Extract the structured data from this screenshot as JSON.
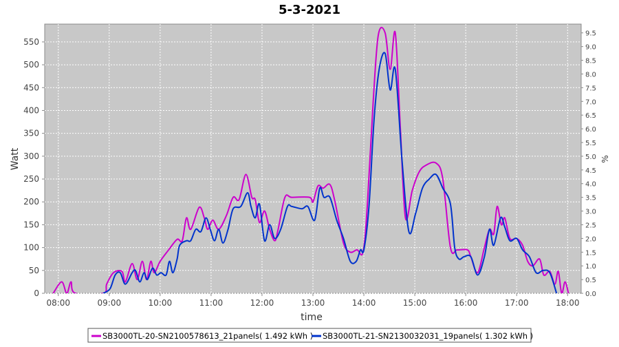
{
  "chart_data": {
    "type": "line",
    "title": "5-3-2021",
    "xlabel": "time",
    "ylabel": "Watt",
    "y2label": "%",
    "xlim": [
      464,
      1096
    ],
    "xticks": [
      {
        "value": 480,
        "label": "08:00"
      },
      {
        "value": 540,
        "label": "09:00"
      },
      {
        "value": 600,
        "label": "10:00"
      },
      {
        "value": 660,
        "label": "11:00"
      },
      {
        "value": 720,
        "label": "12:00"
      },
      {
        "value": 780,
        "label": "13:00"
      },
      {
        "value": 840,
        "label": "14:00"
      },
      {
        "value": 900,
        "label": "15:00"
      },
      {
        "value": 960,
        "label": "16:00"
      },
      {
        "value": 1020,
        "label": "17:00"
      },
      {
        "value": 1080,
        "label": "18:00"
      }
    ],
    "ylim": [
      0,
      589
    ],
    "yticks": [
      0,
      50,
      100,
      150,
      200,
      250,
      300,
      350,
      400,
      450,
      500,
      550
    ],
    "y2lim": [
      0,
      9.82
    ],
    "y2ticks": [
      {
        "value": 0,
        "label": "0.0"
      },
      0.5,
      {
        "value": 1,
        "label": "1.0"
      },
      1.5,
      {
        "value": 2,
        "label": "2.0"
      },
      2.5,
      {
        "value": 3,
        "label": "3.0"
      },
      3.5,
      {
        "value": 4,
        "label": "4.0"
      },
      4.5,
      {
        "value": 5,
        "label": "5.0"
      },
      5.5,
      {
        "value": 6,
        "label": "6.0"
      },
      6.5,
      {
        "value": 7,
        "label": "7.0"
      },
      7.5,
      {
        "value": 8,
        "label": "8.0"
      },
      8.5,
      {
        "value": 9,
        "label": "9.0"
      },
      9.5
    ],
    "grid": true,
    "series": [
      {
        "name": "SB3000TL-20-SN2100578613_21panels( 1.492 kWh )",
        "color": "#cc00cc",
        "x": [
          474,
          484,
          490,
          495,
          500,
          533,
          537,
          545,
          555,
          559,
          567,
          573,
          579,
          584,
          589,
          593,
          600,
          610,
          620,
          626,
          631,
          636,
          646,
          652,
          656,
          662,
          669,
          678,
          686,
          693,
          701,
          708,
          712,
          717,
          723,
          729,
          735,
          739,
          747,
          755,
          776,
          780,
          786,
          792,
          800,
          806,
          816,
          824,
          832,
          839,
          844,
          851,
          857,
          865,
          871,
          877,
          883,
          889,
          897,
          905,
          913,
          925,
          933,
          942,
          950,
          962,
          966,
          974,
          982,
          988,
          993,
          997,
          1002,
          1006,
          1012,
          1020,
          1027,
          1033,
          1039,
          1047,
          1052,
          1059,
          1065,
          1069,
          1073,
          1077,
          1081
        ],
        "values": [
          0,
          25,
          0,
          25,
          0,
          0,
          20,
          45,
          48,
          25,
          65,
          30,
          70,
          30,
          70,
          45,
          70,
          95,
          118,
          115,
          165,
          140,
          188,
          165,
          140,
          160,
          140,
          170,
          210,
          205,
          260,
          210,
          205,
          155,
          180,
          140,
          115,
          140,
          210,
          210,
          210,
          200,
          235,
          230,
          238,
          200,
          110,
          90,
          95,
          90,
          190,
          420,
          565,
          570,
          490,
          570,
          360,
          165,
          225,
          265,
          280,
          285,
          250,
          100,
          95,
          95,
          80,
          45,
          100,
          140,
          130,
          190,
          150,
          165,
          120,
          120,
          105,
          70,
          60,
          75,
          40,
          48,
          20,
          48,
          0,
          25,
          0
        ]
      },
      {
        "name": "SB3000TL-21-SN2130032031_19panels( 1.302 kWh )",
        "color": "#0033cc",
        "x": [
          533,
          541,
          547,
          553,
          559,
          567,
          571,
          576,
          581,
          585,
          591,
          596,
          601,
          607,
          611,
          615,
          620,
          623,
          631,
          636,
          642,
          648,
          654,
          659,
          664,
          669,
          674,
          680,
          686,
          695,
          703,
          707,
          712,
          717,
          723,
          729,
          735,
          742,
          750,
          755,
          767,
          774,
          782,
          788,
          793,
          800,
          808,
          816,
          824,
          831,
          836,
          840,
          846,
          852,
          858,
          865,
          871,
          877,
          885,
          893,
          901,
          909,
          917,
          925,
          933,
          942,
          947,
          952,
          958,
          966,
          974,
          982,
          988,
          993,
          1001,
          1006,
          1012,
          1020,
          1027,
          1035,
          1043,
          1051,
          1059,
          1067
        ],
        "values": [
          0,
          10,
          40,
          45,
          20,
          45,
          50,
          25,
          45,
          30,
          55,
          40,
          45,
          40,
          70,
          45,
          75,
          105,
          115,
          115,
          140,
          135,
          165,
          140,
          115,
          140,
          110,
          140,
          185,
          190,
          220,
          190,
          165,
          195,
          115,
          150,
          120,
          140,
          190,
          190,
          185,
          190,
          160,
          230,
          210,
          210,
          160,
          120,
          70,
          70,
          95,
          95,
          190,
          380,
          490,
          525,
          445,
          490,
          290,
          135,
          175,
          230,
          250,
          260,
          230,
          195,
          100,
          75,
          80,
          80,
          40,
          80,
          140,
          105,
          165,
          145,
          115,
          120,
          95,
          80,
          45,
          50,
          45,
          0
        ]
      }
    ]
  }
}
